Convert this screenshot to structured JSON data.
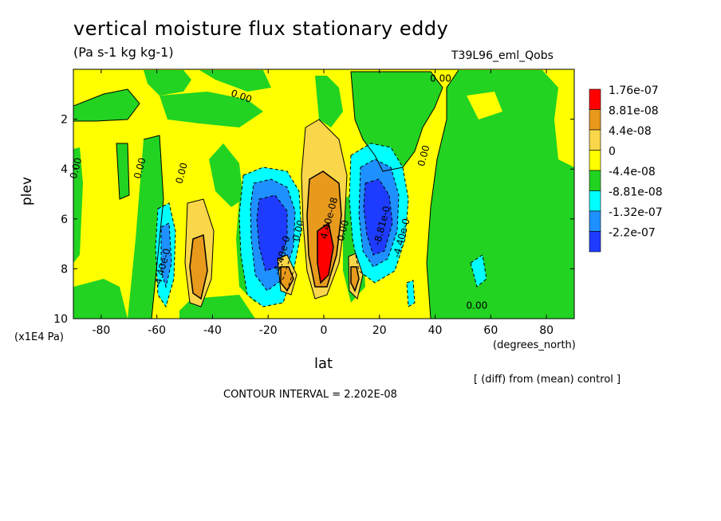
{
  "header": {
    "title": "vertical moisture flux stationary eddy",
    "subtitle": "(Pa s-1 kg kg-1)",
    "run": "T39L96_eml_Qobs"
  },
  "footer": {
    "diff_note": "[ (diff) from (mean) control ]",
    "contour_interval": "CONTOUR INTERVAL = 2.202E-08"
  },
  "chart_data": {
    "type": "heatmap",
    "title": "vertical moisture flux stationary eddy",
    "xlabel": "lat",
    "ylabel": "plev",
    "x_units": "(degrees_north)",
    "y_units": "(x1E4 Pa)",
    "xlim": [
      -90,
      90
    ],
    "ylim": [
      10,
      0
    ],
    "x_ticks": [
      "-80",
      "-60",
      "-40",
      "-20",
      "0",
      "20",
      "40",
      "60",
      "80"
    ],
    "y_ticks": [
      "2",
      "4",
      "6",
      "8",
      "10"
    ],
    "legend": {
      "position": "right",
      "levels": [
        {
          "label": "1.76e-07",
          "color": "#ff0000"
        },
        {
          "label": "8.81e-08",
          "color": "#e89a1c"
        },
        {
          "label": "4.4e-08",
          "color": "#fad64a"
        },
        {
          "label": "0",
          "color": "#ffff00"
        },
        {
          "label": "-4.4e-08",
          "color": "#22d322"
        },
        {
          "label": "-8.81e-08",
          "color": "#00ffff"
        },
        {
          "label": "-1.32e-07",
          "color": "#1e90ff"
        },
        {
          "label": "-2.2e-07",
          "color": "#1e3cff"
        }
      ]
    },
    "contour_labels": [
      {
        "text": "0.00",
        "x": -30,
        "y": 1.2
      },
      {
        "text": "0.00",
        "x": 42,
        "y": 0.5
      },
      {
        "text": "0.00",
        "x": 37,
        "y": 3.5
      },
      {
        "text": "0.00",
        "x": -88,
        "y": 4.0
      },
      {
        "text": "0.00",
        "x": -65,
        "y": 4.0
      },
      {
        "text": "0.00",
        "x": -50,
        "y": 4.2
      },
      {
        "text": "-4.40e-0",
        "x": -57,
        "y": 8.0
      },
      {
        "text": "-4.40e-0",
        "x": -14,
        "y": 7.5
      },
      {
        "text": "0.00",
        "x": -8,
        "y": 6.5
      },
      {
        "text": "4.40e-08",
        "x": 3,
        "y": 6.0
      },
      {
        "text": "0.00",
        "x": 8,
        "y": 6.5
      },
      {
        "text": "-8.81e-0",
        "x": 22,
        "y": 6.3
      },
      {
        "text": "-4.40e-0",
        "x": 29,
        "y": 6.8
      },
      {
        "text": "0.00",
        "x": 55,
        "y": 9.6
      }
    ]
  }
}
